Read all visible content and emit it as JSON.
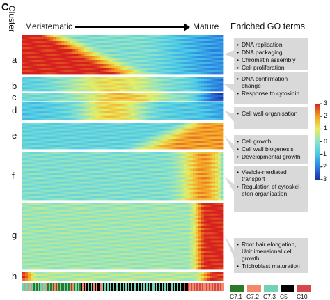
{
  "panel_letter": "C",
  "cluster_title": "Cluster",
  "x_axis": {
    "left_label": "Meristematic",
    "right_label": "Mature"
  },
  "go_title": "Enriched GO terms",
  "chart_data": {
    "type": "heatmap",
    "title": "",
    "xlabel_left": "Meristematic",
    "xlabel_right": "Mature",
    "ylabel": "Cluster",
    "color_scale": {
      "min": -3,
      "max": 3,
      "ticks": [
        3,
        2,
        1,
        0,
        -1,
        -2,
        -3
      ],
      "colors": [
        "#1e2fa5",
        "#2a7fe0",
        "#49c8e8",
        "#8ee3c8",
        "#e8ee60",
        "#f5a023",
        "#d6201f"
      ]
    },
    "clusters": [
      {
        "label": "a",
        "pattern": "high in meristematic, low in mature"
      },
      {
        "label": "b",
        "pattern": "low early, mid peak, low mature"
      },
      {
        "label": "c",
        "pattern": "mid-zone peak, low at mature end"
      },
      {
        "label": "d",
        "pattern": "mid-zone peak"
      },
      {
        "label": "e",
        "pattern": "increasing from mid-zone"
      },
      {
        "label": "f",
        "pattern": "peak toward mature end"
      },
      {
        "label": "g",
        "pattern": "high at mature end"
      },
      {
        "label": "h",
        "pattern": "high at both ends"
      }
    ],
    "go_terms": [
      {
        "cluster": "a",
        "terms": [
          "DNA replication",
          "DNA packaging",
          "Chromatin assembly",
          "Cell proliferation"
        ]
      },
      {
        "cluster": "b",
        "terms": [
          "DNA confirmation change",
          "Response to cytokinin"
        ]
      },
      {
        "cluster": "d",
        "terms": [
          "Cell wall organisation"
        ]
      },
      {
        "cluster": "e-f",
        "terms": [
          "Cell growth",
          "Cell wall biogenesis",
          "Developmental growth"
        ]
      },
      {
        "cluster": "f-g",
        "terms": [
          "Vesicle-mediated transport",
          "Regulation of cytoskel-eton organisation"
        ]
      },
      {
        "cluster": "g",
        "terms": [
          "Root hair elongation, Unidimensional cell growth",
          "Trichoblast maturation"
        ]
      }
    ],
    "bottom_legend": [
      {
        "label": "C7.1",
        "color": "#2a7a2a"
      },
      {
        "label": "C7.2",
        "color": "#f08a6a"
      },
      {
        "label": "C7.3",
        "color": "#72d2b4"
      },
      {
        "label": "C5",
        "color": "#000000"
      },
      {
        "label": "C10",
        "color": "#d64848"
      }
    ]
  }
}
